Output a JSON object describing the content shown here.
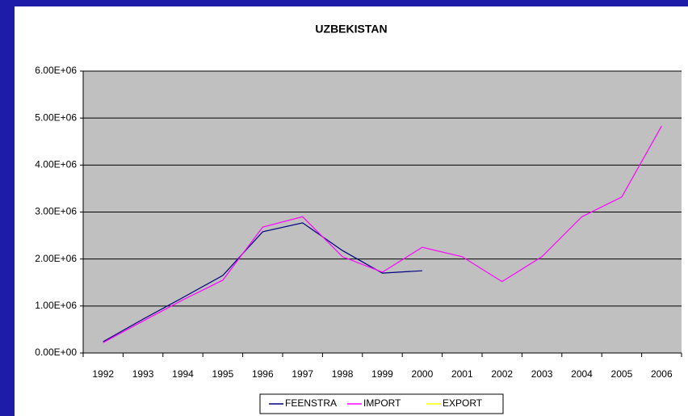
{
  "chart_data": {
    "type": "line",
    "title": "UZBEKISTAN",
    "categories": [
      "1992",
      "1993",
      "1994",
      "1995",
      "1996",
      "1997",
      "1998",
      "1999",
      "2000",
      "2001",
      "2002",
      "2003",
      "2004",
      "2005",
      "2006"
    ],
    "series": [
      {
        "name": "FEENSTRA",
        "color": "#000080",
        "values": [
          240000,
          720000,
          1180000,
          1650000,
          2580000,
          2770000,
          2180000,
          1700000,
          1750000,
          null,
          null,
          null,
          null,
          null,
          null
        ]
      },
      {
        "name": "IMPORT",
        "color": "#ff00ff",
        "values": [
          220000,
          680000,
          1130000,
          1550000,
          2680000,
          2900000,
          2050000,
          1720000,
          2250000,
          2050000,
          1520000,
          2050000,
          2900000,
          3320000,
          4830000
        ]
      },
      {
        "name": "EXPORT",
        "color": "#ffff00",
        "values": [
          null,
          null,
          null,
          null,
          null,
          null,
          null,
          null,
          null,
          null,
          null,
          null,
          null,
          null,
          null
        ]
      }
    ],
    "ylim": [
      0,
      6000000
    ],
    "yticks": [
      {
        "value": 0,
        "label": "0.00E+00"
      },
      {
        "value": 1000000,
        "label": "1.00E+06"
      },
      {
        "value": 2000000,
        "label": "2.00E+06"
      },
      {
        "value": 3000000,
        "label": "3.00E+06"
      },
      {
        "value": 4000000,
        "label": "4.00E+06"
      },
      {
        "value": 5000000,
        "label": "5.00E+06"
      },
      {
        "value": 6000000,
        "label": "6.00E+06"
      }
    ],
    "grid": true,
    "legend": "bottom"
  }
}
